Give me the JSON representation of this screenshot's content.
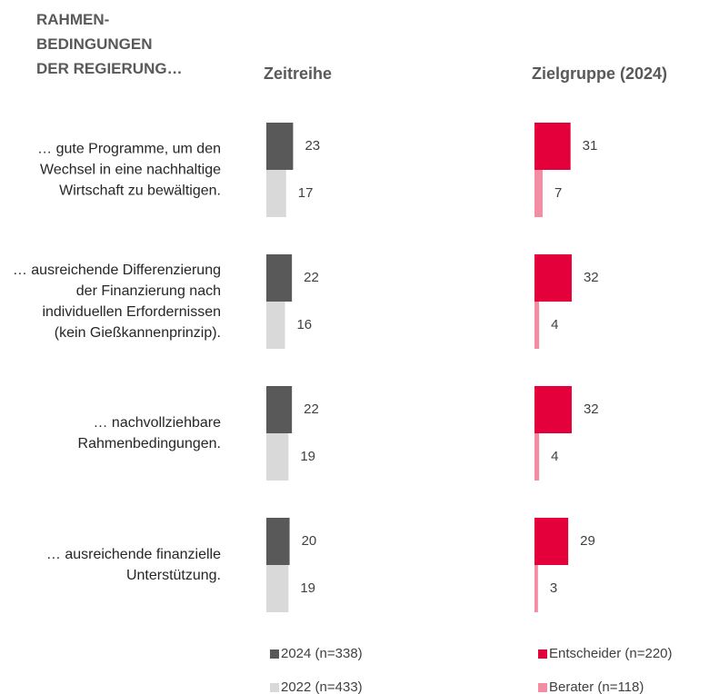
{
  "header": "RAHMEN-\nBEDINGUNGEN\nDER REGIERUNG…",
  "chart_data": [
    {
      "type": "bar",
      "title": "Zeitreihe",
      "categories": [
        "… gute Programme, um den Wechsel in eine nachhaltige Wirtschaft zu bewältigen.",
        "… ausreichende Differenzierung der Finanzierung nach individuellen Erfordernissen (kein Gießkannenprinzip).",
        "… nachvollziehbare Rahmenbedingungen.",
        "… ausreichende finanzielle Unterstützung."
      ],
      "series": [
        {
          "name": "2024 (n=338)",
          "color": "#595959",
          "values": [
            23,
            22,
            22,
            20
          ]
        },
        {
          "name": "2022 (n=433)",
          "color": "#d9d9d9",
          "values": [
            17,
            16,
            19,
            19
          ]
        }
      ]
    },
    {
      "type": "bar",
      "title": "Zielgruppe (2024)",
      "series": [
        {
          "name": "Entscheider (n=220)",
          "color": "#e4003a",
          "values": [
            31,
            32,
            32,
            29
          ]
        },
        {
          "name": "Berater (n=118)",
          "color": "#f48ca4",
          "values": [
            7,
            4,
            4,
            3
          ]
        }
      ]
    }
  ]
}
